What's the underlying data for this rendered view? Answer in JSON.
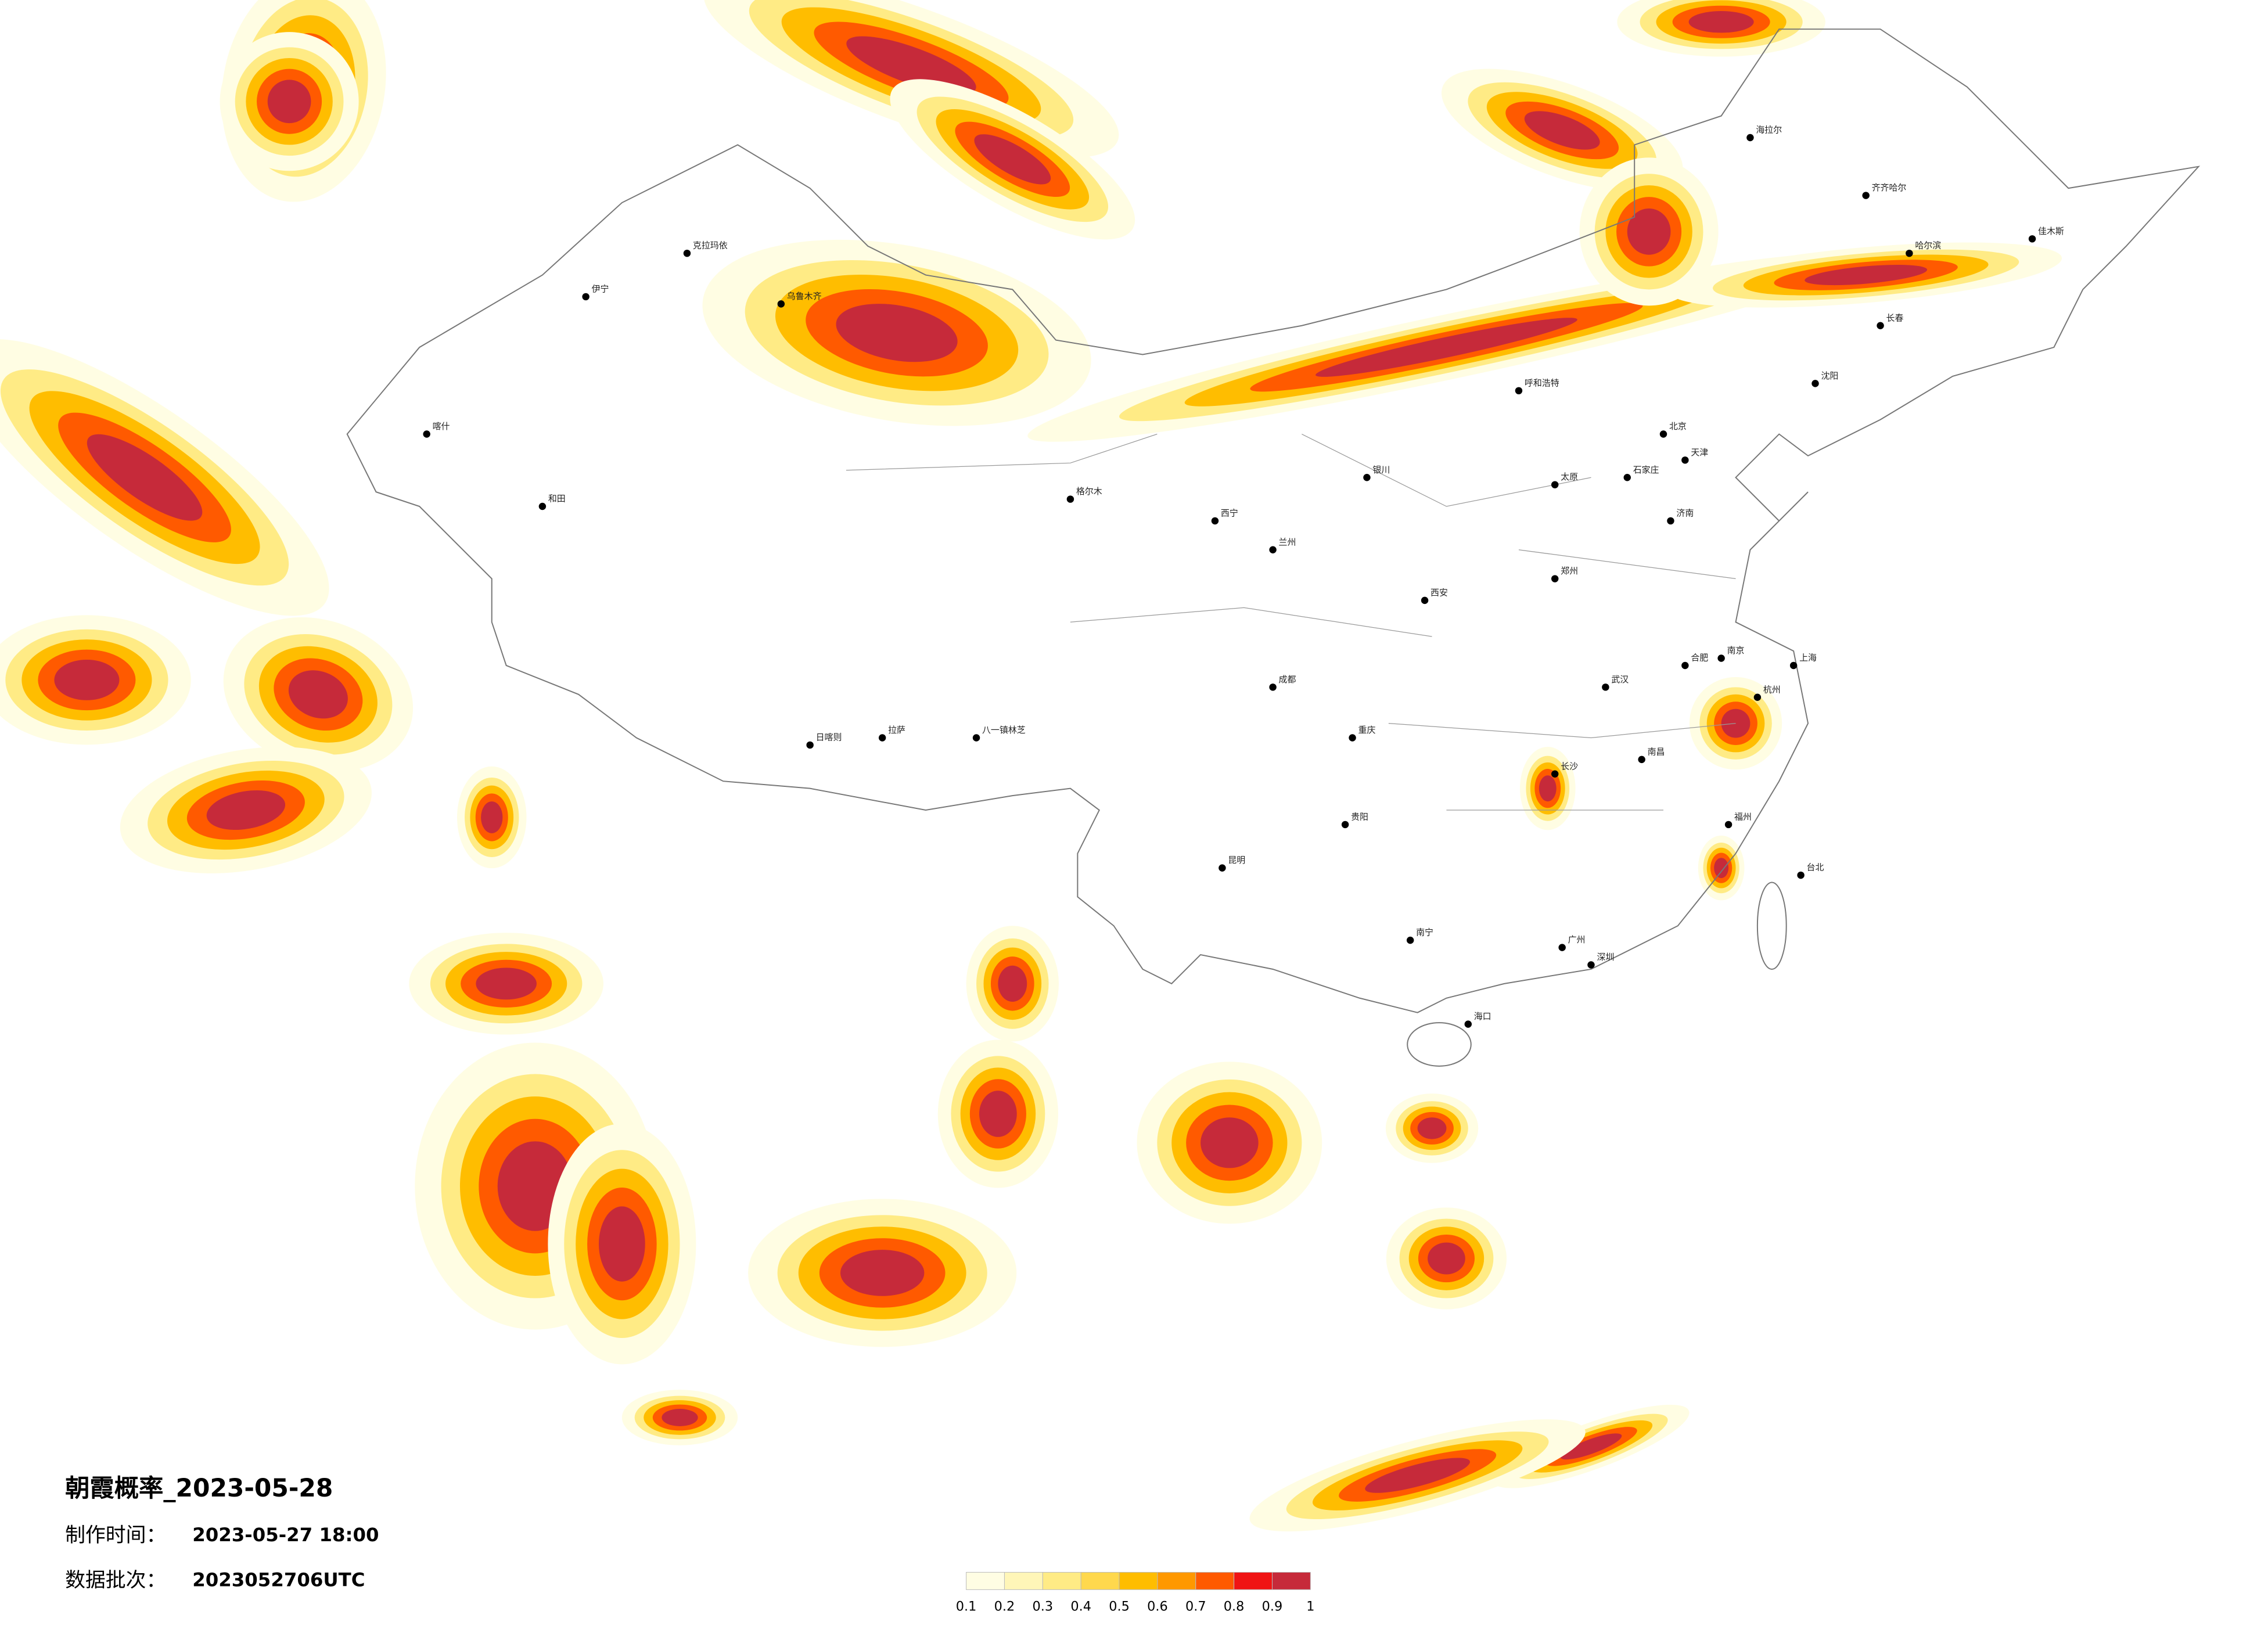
{
  "title": "朝霞概率_2023-05-28",
  "info": [
    {
      "label": "制作时间：",
      "value": "2023-05-27 18:00"
    },
    {
      "label": "数据批次：",
      "value": "2023052706UTC"
    }
  ],
  "legend": {
    "ticks": [
      0.1,
      0.2,
      0.3,
      0.4,
      0.5,
      0.6,
      0.7,
      0.8,
      0.9,
      1
    ],
    "colors": [
      "#fffde3",
      "#fff6b8",
      "#ffeb85",
      "#ffd84d",
      "#ffbd00",
      "#ff9800",
      "#ff5a00",
      "#f01414",
      "#c62a3a"
    ]
  },
  "cities": [
    "北京",
    "天津",
    "上海",
    "广州",
    "深圳",
    "重庆",
    "成都",
    "武汉",
    "西安",
    "郑州",
    "长沙",
    "南京",
    "杭州",
    "福州",
    "南昌",
    "合肥",
    "济南",
    "石家庄",
    "太原",
    "呼和浩特",
    "沈阳",
    "长春",
    "哈尔滨",
    "拉萨",
    "乌鲁木齐",
    "西宁",
    "兰州",
    "银川",
    "昆明",
    "贵阳",
    "南宁",
    "海口",
    "台北",
    "喀什",
    "和田",
    "伊宁",
    "克拉玛依",
    "格尔木",
    "八一镇林芝",
    "日喀则",
    "齐齐哈尔",
    "海拉尔",
    "佳木斯"
  ]
}
